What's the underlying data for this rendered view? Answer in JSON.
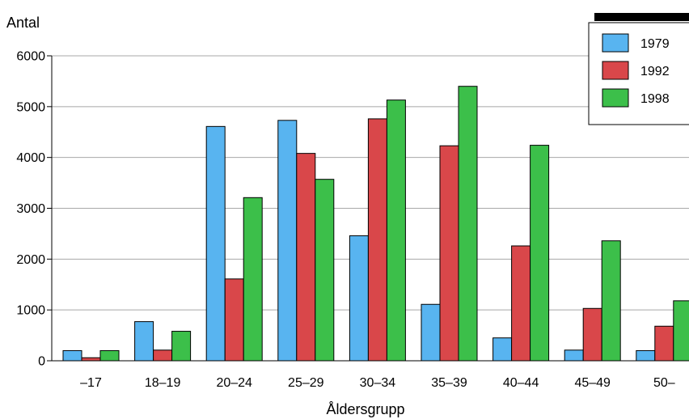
{
  "chart_data": {
    "type": "bar",
    "ylabel": "Antal",
    "xlabel": "Åldersgrupp",
    "ylim": [
      0,
      6000
    ],
    "yticks": [
      0,
      1000,
      2000,
      3000,
      4000,
      5000,
      6000
    ],
    "grid": true,
    "legend_position": "top-right",
    "categories": [
      "–17",
      "18–19",
      "20–24",
      "25–29",
      "30–34",
      "35–39",
      "40–44",
      "45–49",
      "50–"
    ],
    "series": [
      {
        "name": "1979",
        "color": "#58b4f0",
        "values": [
          200,
          770,
          4610,
          4730,
          2460,
          1110,
          450,
          210,
          200
        ]
      },
      {
        "name": "1992",
        "color": "#d9474a",
        "values": [
          60,
          210,
          1610,
          4080,
          4760,
          4230,
          2260,
          1030,
          680
        ]
      },
      {
        "name": "1998",
        "color": "#3cbf4a",
        "values": [
          200,
          580,
          3210,
          3570,
          5130,
          5400,
          4240,
          2360,
          1180
        ]
      }
    ]
  }
}
